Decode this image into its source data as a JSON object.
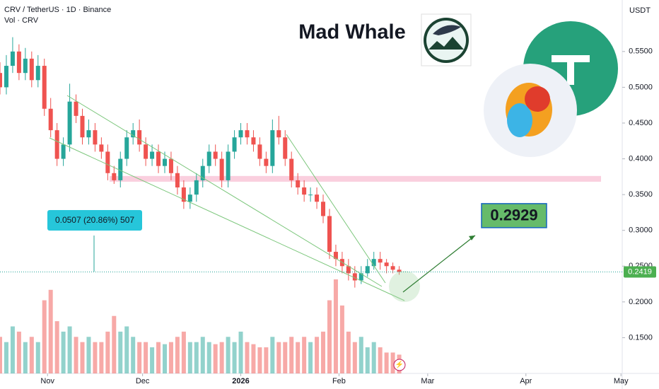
{
  "chart_data": {
    "type": "candlestick",
    "header": "CRV / TetherUS · 1D · Binance",
    "volume_label": "Vol · CRV",
    "title": "Mad Whale",
    "axis_unit": "USDT",
    "up_color": "#26a69a",
    "down_color": "#ef5350",
    "x": [
      0,
      2,
      4,
      6,
      8,
      10,
      12,
      14,
      16,
      18,
      20,
      22,
      24,
      26,
      28,
      30,
      32,
      34,
      36,
      38,
      40,
      42,
      44,
      46,
      48,
      50,
      52,
      54,
      56,
      58,
      60,
      62,
      64,
      66,
      68,
      70,
      72,
      74,
      76,
      78,
      80,
      82,
      84,
      86,
      88,
      90,
      92,
      94,
      96,
      98,
      100,
      102,
      104,
      106,
      108,
      110,
      112,
      114,
      116,
      118,
      120,
      122,
      124,
      126
    ],
    "open": [
      0.52,
      0.5,
      0.53,
      0.55,
      0.52,
      0.54,
      0.51,
      0.53,
      0.47,
      0.44,
      0.4,
      0.42,
      0.48,
      0.46,
      0.43,
      0.44,
      0.42,
      0.41,
      0.38,
      0.37,
      0.4,
      0.43,
      0.44,
      0.42,
      0.4,
      0.41,
      0.39,
      0.4,
      0.38,
      0.36,
      0.34,
      0.35,
      0.37,
      0.39,
      0.41,
      0.4,
      0.37,
      0.41,
      0.43,
      0.44,
      0.43,
      0.42,
      0.4,
      0.39,
      0.44,
      0.43,
      0.4,
      0.37,
      0.36,
      0.35,
      0.35,
      0.34,
      0.32,
      0.27,
      0.26,
      0.25,
      0.24,
      0.23,
      0.24,
      0.25,
      0.26,
      0.255,
      0.25,
      0.245
    ],
    "high": [
      0.535,
      0.545,
      0.57,
      0.56,
      0.555,
      0.55,
      0.545,
      0.54,
      0.485,
      0.45,
      0.43,
      0.505,
      0.49,
      0.47,
      0.455,
      0.45,
      0.43,
      0.42,
      0.39,
      0.41,
      0.44,
      0.45,
      0.455,
      0.43,
      0.42,
      0.42,
      0.41,
      0.41,
      0.39,
      0.37,
      0.36,
      0.38,
      0.4,
      0.42,
      0.42,
      0.41,
      0.42,
      0.44,
      0.45,
      0.45,
      0.44,
      0.43,
      0.41,
      0.455,
      0.46,
      0.44,
      0.41,
      0.38,
      0.37,
      0.36,
      0.36,
      0.35,
      0.33,
      0.28,
      0.27,
      0.26,
      0.25,
      0.25,
      0.26,
      0.27,
      0.27,
      0.26,
      0.255,
      0.25
    ],
    "low": [
      0.49,
      0.49,
      0.52,
      0.51,
      0.51,
      0.5,
      0.5,
      0.46,
      0.43,
      0.39,
      0.39,
      0.41,
      0.45,
      0.42,
      0.42,
      0.41,
      0.4,
      0.37,
      0.365,
      0.36,
      0.39,
      0.42,
      0.41,
      0.39,
      0.39,
      0.38,
      0.38,
      0.37,
      0.35,
      0.33,
      0.33,
      0.34,
      0.36,
      0.38,
      0.39,
      0.36,
      0.36,
      0.4,
      0.42,
      0.42,
      0.41,
      0.39,
      0.38,
      0.38,
      0.42,
      0.39,
      0.36,
      0.35,
      0.34,
      0.34,
      0.33,
      0.31,
      0.26,
      0.25,
      0.24,
      0.23,
      0.22,
      0.225,
      0.235,
      0.245,
      0.245,
      0.24,
      0.24,
      0.238
    ],
    "close": [
      0.5,
      0.53,
      0.55,
      0.52,
      0.54,
      0.51,
      0.53,
      0.47,
      0.44,
      0.4,
      0.42,
      0.48,
      0.46,
      0.43,
      0.44,
      0.42,
      0.41,
      0.38,
      0.37,
      0.4,
      0.43,
      0.44,
      0.42,
      0.4,
      0.41,
      0.39,
      0.4,
      0.38,
      0.36,
      0.34,
      0.35,
      0.37,
      0.39,
      0.41,
      0.4,
      0.37,
      0.41,
      0.43,
      0.44,
      0.43,
      0.42,
      0.4,
      0.39,
      0.44,
      0.43,
      0.4,
      0.37,
      0.36,
      0.35,
      0.35,
      0.34,
      0.32,
      0.27,
      0.26,
      0.25,
      0.24,
      0.23,
      0.24,
      0.25,
      0.26,
      0.255,
      0.25,
      0.245,
      0.2419
    ],
    "volume": [
      35,
      30,
      45,
      40,
      30,
      35,
      30,
      70,
      80,
      50,
      40,
      45,
      35,
      30,
      35,
      30,
      30,
      40,
      55,
      40,
      45,
      35,
      30,
      30,
      25,
      30,
      28,
      30,
      35,
      40,
      30,
      30,
      35,
      30,
      28,
      30,
      35,
      30,
      40,
      30,
      28,
      25,
      25,
      35,
      30,
      30,
      35,
      30,
      35,
      30,
      35,
      40,
      70,
      90,
      65,
      40,
      30,
      35,
      25,
      30,
      25,
      20,
      20,
      18
    ],
    "xlim": [
      0,
      196.4
    ],
    "xticks": [
      {
        "value": 15,
        "label": "Nov"
      },
      {
        "value": 45,
        "label": "Dec"
      },
      {
        "value": 76,
        "label": "2026"
      },
      {
        "value": 107,
        "label": "Feb"
      },
      {
        "value": 135,
        "label": "Mar"
      },
      {
        "value": 166,
        "label": "Apr"
      },
      {
        "value": 196,
        "label": "May"
      }
    ],
    "ylim": [
      0.1,
      0.622
    ],
    "yticks": [
      {
        "value": 0.15,
        "label": "0.1500"
      },
      {
        "value": 0.2,
        "label": "0.2000"
      },
      {
        "value": 0.25,
        "label": "0.2500"
      },
      {
        "value": 0.3,
        "label": "0.3000"
      },
      {
        "value": 0.35,
        "label": "0.3500"
      },
      {
        "value": 0.4,
        "label": "0.4000"
      },
      {
        "value": 0.45,
        "label": "0.4500"
      },
      {
        "value": 0.5,
        "label": "0.5000"
      },
      {
        "value": 0.55,
        "label": "0.5500"
      }
    ],
    "last_price": 0.2419,
    "target_price": 0.2929,
    "measure_label": "0.0507 (20.86%) 507",
    "resistance_zone": [
      0.368,
      0.376
    ]
  }
}
